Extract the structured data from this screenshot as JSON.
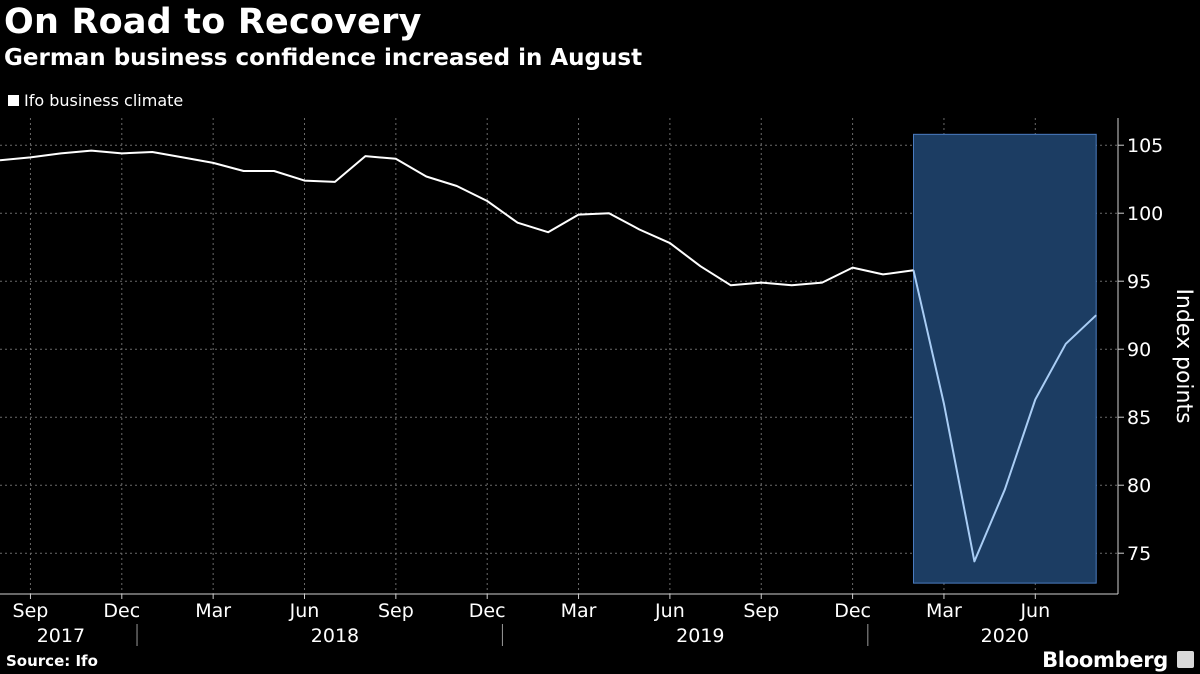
{
  "header": {
    "title": "On Road to Recovery",
    "subtitle": "German business confidence increased in August"
  },
  "legend": {
    "label": "Ifo business climate"
  },
  "chart_data": {
    "type": "line",
    "title": "On Road to Recovery",
    "subtitle": "German business confidence increased in August",
    "ylabel": "Index points",
    "ylim": [
      72,
      107
    ],
    "yticks": [
      75,
      80,
      85,
      90,
      95,
      100,
      105
    ],
    "series": [
      {
        "name": "Ifo business climate",
        "x": [
          "2017-08",
          "2017-09",
          "2017-10",
          "2017-11",
          "2017-12",
          "2018-01",
          "2018-02",
          "2018-03",
          "2018-04",
          "2018-05",
          "2018-06",
          "2018-07",
          "2018-08",
          "2018-09",
          "2018-10",
          "2018-11",
          "2018-12",
          "2019-01",
          "2019-02",
          "2019-03",
          "2019-04",
          "2019-05",
          "2019-06",
          "2019-07",
          "2019-08",
          "2019-09",
          "2019-10",
          "2019-11",
          "2019-12",
          "2020-01",
          "2020-02",
          "2020-03",
          "2020-04",
          "2020-05",
          "2020-06",
          "2020-07",
          "2020-08"
        ],
        "values": [
          103.9,
          104.1,
          104.4,
          104.6,
          104.4,
          104.5,
          104.1,
          103.7,
          103.1,
          103.1,
          102.4,
          102.3,
          104.2,
          104.0,
          102.7,
          102.0,
          100.9,
          99.3,
          98.6,
          99.9,
          100.0,
          98.8,
          97.8,
          96.1,
          94.7,
          94.9,
          94.7,
          94.9,
          96.0,
          95.5,
          95.8,
          86.0,
          74.4,
          79.7,
          86.3,
          90.4,
          92.5
        ]
      }
    ],
    "x_tick_labels": [
      {
        "date": "2017-09",
        "label": "Sep"
      },
      {
        "date": "2017-12",
        "label": "Dec"
      },
      {
        "date": "2018-03",
        "label": "Mar"
      },
      {
        "date": "2018-06",
        "label": "Jun"
      },
      {
        "date": "2018-09",
        "label": "Sep"
      },
      {
        "date": "2018-12",
        "label": "Dec"
      },
      {
        "date": "2019-03",
        "label": "Mar"
      },
      {
        "date": "2019-06",
        "label": "Jun"
      },
      {
        "date": "2019-09",
        "label": "Sep"
      },
      {
        "date": "2019-12",
        "label": "Dec"
      },
      {
        "date": "2020-03",
        "label": "Mar"
      },
      {
        "date": "2020-06",
        "label": "Jun"
      }
    ],
    "year_labels": [
      {
        "date": "2017-10",
        "label": "2017"
      },
      {
        "date": "2018-07",
        "label": "2018"
      },
      {
        "date": "2019-07",
        "label": "2019"
      },
      {
        "date": "2020-05",
        "label": "2020"
      }
    ],
    "year_separators": [
      "2018-01",
      "2019-01",
      "2020-01"
    ],
    "highlight": {
      "from": "2020-02",
      "to": "2020-08",
      "ymin": 72.8,
      "ymax": 105.8
    },
    "grid": true
  },
  "footer": {
    "source": "Source: Ifo",
    "brand": "Bloomberg"
  },
  "colors": {
    "background": "#000000",
    "line": "#ffffff",
    "highlight_fill": "#1c3d63",
    "highlight_stroke": "#4a7cc0",
    "highlight_line": "#a9cdf5",
    "grid": "#6a6a6a"
  }
}
